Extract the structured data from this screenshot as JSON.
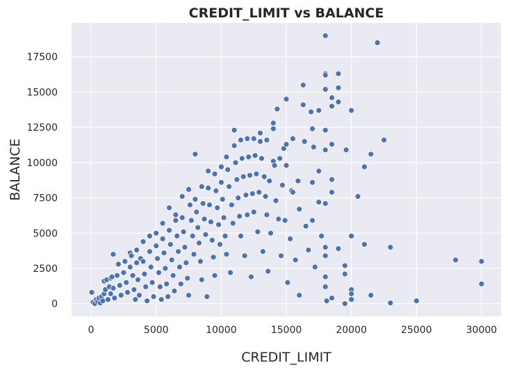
{
  "chart_data": {
    "type": "scatter",
    "title": "CREDIT_LIMIT vs BALANCE",
    "xlabel": "CREDIT_LIMIT",
    "ylabel": "BALANCE",
    "xlim": [
      -1500,
      31500
    ],
    "ylim": [
      -900,
      19900
    ],
    "xticks": [
      0,
      5000,
      10000,
      15000,
      20000,
      25000,
      30000
    ],
    "yticks": [
      0,
      2500,
      5000,
      7500,
      10000,
      12500,
      15000,
      17500
    ],
    "grid": true,
    "colors": {
      "background": "#eaeaf2",
      "grid": "#ffffff",
      "point": "#4c72b0",
      "point_edge": "#ffffff"
    },
    "series": [
      {
        "points": [
          [
            50,
            800
          ],
          [
            150,
            100
          ],
          [
            300,
            0
          ],
          [
            400,
            300
          ],
          [
            500,
            150
          ],
          [
            600,
            400
          ],
          [
            700,
            50
          ],
          [
            800,
            500
          ],
          [
            900,
            200
          ],
          [
            1000,
            700
          ],
          [
            1000,
            1600
          ],
          [
            1100,
            1000
          ],
          [
            1200,
            1700
          ],
          [
            1300,
            300
          ],
          [
            1400,
            1200
          ],
          [
            1500,
            1800
          ],
          [
            1500,
            700
          ],
          [
            1600,
            1900
          ],
          [
            1700,
            3500
          ],
          [
            1700,
            1100
          ],
          [
            1800,
            400
          ],
          [
            2000,
            2000
          ],
          [
            2100,
            2800
          ],
          [
            2200,
            1300
          ],
          [
            2300,
            600
          ],
          [
            2500,
            2200
          ],
          [
            2600,
            3000
          ],
          [
            2700,
            1500
          ],
          [
            2800,
            800
          ],
          [
            3000,
            2600
          ],
          [
            3000,
            3600
          ],
          [
            3100,
            3400
          ],
          [
            3200,
            2000
          ],
          [
            3300,
            1000
          ],
          [
            3400,
            300
          ],
          [
            3500,
            3800
          ],
          [
            3500,
            2900
          ],
          [
            3600,
            1700
          ],
          [
            3700,
            600
          ],
          [
            3800,
            3200
          ],
          [
            4000,
            4400
          ],
          [
            4000,
            3000
          ],
          [
            4100,
            2100
          ],
          [
            4200,
            1200
          ],
          [
            4300,
            200
          ],
          [
            4500,
            4800
          ],
          [
            4500,
            3700
          ],
          [
            4600,
            2600
          ],
          [
            4700,
            1500
          ],
          [
            4800,
            500
          ],
          [
            5000,
            5000
          ],
          [
            5000,
            4100
          ],
          [
            5100,
            3200
          ],
          [
            5200,
            2200
          ],
          [
            5300,
            1200
          ],
          [
            5400,
            300
          ],
          [
            5500,
            5700
          ],
          [
            5500,
            4600
          ],
          [
            5600,
            3600
          ],
          [
            5700,
            2500
          ],
          [
            5800,
            1400
          ],
          [
            5900,
            500
          ],
          [
            6000,
            6800
          ],
          [
            6000,
            5200
          ],
          [
            6100,
            4200
          ],
          [
            6200,
            3100
          ],
          [
            6300,
            2000
          ],
          [
            6400,
            900
          ],
          [
            6500,
            5900
          ],
          [
            6500,
            6300
          ],
          [
            6600,
            4800
          ],
          [
            6700,
            3700
          ],
          [
            6800,
            2600
          ],
          [
            6900,
            1400
          ],
          [
            7000,
            7600
          ],
          [
            7000,
            6100
          ],
          [
            7100,
            5100
          ],
          [
            7200,
            4000
          ],
          [
            7300,
            2900
          ],
          [
            7400,
            1800
          ],
          [
            7500,
            600
          ],
          [
            7500,
            8100
          ],
          [
            7600,
            7000
          ],
          [
            7700,
            5900
          ],
          [
            7800,
            4800
          ],
          [
            7900,
            3500
          ],
          [
            8000,
            10600
          ],
          [
            8000,
            7400
          ],
          [
            8100,
            6500
          ],
          [
            8200,
            5400
          ],
          [
            8300,
            4300
          ],
          [
            8400,
            3000
          ],
          [
            8500,
            8300
          ],
          [
            8500,
            1700
          ],
          [
            8600,
            7100
          ],
          [
            8700,
            6000
          ],
          [
            8800,
            4900
          ],
          [
            8900,
            500
          ],
          [
            9000,
            9400
          ],
          [
            9000,
            8200
          ],
          [
            9100,
            7000
          ],
          [
            9200,
            5800
          ],
          [
            9300,
            4500
          ],
          [
            9400,
            3300
          ],
          [
            9500,
            9200
          ],
          [
            9500,
            2000
          ],
          [
            9600,
            8000
          ],
          [
            9700,
            6800
          ],
          [
            9800,
            5600
          ],
          [
            9900,
            4200
          ],
          [
            10000,
            9700
          ],
          [
            10000,
            8600
          ],
          [
            10100,
            7400
          ],
          [
            10200,
            6100
          ],
          [
            10300,
            4800
          ],
          [
            10400,
            10400
          ],
          [
            10400,
            3500
          ],
          [
            10500,
            9500
          ],
          [
            10600,
            8300
          ],
          [
            10700,
            2200
          ],
          [
            10800,
            7000
          ],
          [
            10900,
            5700
          ],
          [
            11000,
            12300
          ],
          [
            11000,
            11200
          ],
          [
            11100,
            10000
          ],
          [
            11200,
            8800
          ],
          [
            11300,
            7500
          ],
          [
            11400,
            6200
          ],
          [
            11500,
            11600
          ],
          [
            11500,
            4800
          ],
          [
            11600,
            10300
          ],
          [
            11700,
            9000
          ],
          [
            11800,
            3400
          ],
          [
            11900,
            7700
          ],
          [
            12000,
            11700
          ],
          [
            12000,
            6300
          ],
          [
            12100,
            10400
          ],
          [
            12200,
            9100
          ],
          [
            12300,
            1900
          ],
          [
            12400,
            7800
          ],
          [
            12500,
            11700
          ],
          [
            12500,
            6500
          ],
          [
            12600,
            10500
          ],
          [
            12700,
            9200
          ],
          [
            12800,
            5100
          ],
          [
            12900,
            7900
          ],
          [
            13000,
            12100
          ],
          [
            13000,
            11500
          ],
          [
            13100,
            10300
          ],
          [
            13200,
            3700
          ],
          [
            13300,
            9000
          ],
          [
            13400,
            7600
          ],
          [
            13500,
            11600
          ],
          [
            13500,
            6300
          ],
          [
            13600,
            2300
          ],
          [
            13700,
            8700
          ],
          [
            13800,
            5000
          ],
          [
            14000,
            12800
          ],
          [
            14000,
            12400
          ],
          [
            14000,
            10100
          ],
          [
            14100,
            9800
          ],
          [
            14200,
            7300
          ],
          [
            14300,
            13800
          ],
          [
            14400,
            6000
          ],
          [
            14500,
            10300
          ],
          [
            14600,
            3400
          ],
          [
            14700,
            8400
          ],
          [
            14800,
            11000
          ],
          [
            14900,
            5900
          ],
          [
            15000,
            14500
          ],
          [
            15000,
            11300
          ],
          [
            15000,
            9800
          ],
          [
            15100,
            1500
          ],
          [
            15300,
            4600
          ],
          [
            15400,
            8000
          ],
          [
            15500,
            11700
          ],
          [
            15500,
            7900
          ],
          [
            15700,
            3100
          ],
          [
            15900,
            8700
          ],
          [
            16000,
            6700
          ],
          [
            16000,
            600
          ],
          [
            16300,
            15500
          ],
          [
            16300,
            14100
          ],
          [
            16400,
            11500
          ],
          [
            16500,
            5500
          ],
          [
            16700,
            3800
          ],
          [
            16900,
            13600
          ],
          [
            17000,
            12400
          ],
          [
            17000,
            8600
          ],
          [
            17000,
            5900
          ],
          [
            17100,
            11100
          ],
          [
            17200,
            2600
          ],
          [
            17500,
            13700
          ],
          [
            17500,
            9400
          ],
          [
            17500,
            7200
          ],
          [
            17700,
            4800
          ],
          [
            18000,
            19000
          ],
          [
            18000,
            16300
          ],
          [
            18000,
            16200
          ],
          [
            18000,
            15200
          ],
          [
            18000,
            12300
          ],
          [
            18000,
            10900
          ],
          [
            18000,
            7100
          ],
          [
            18000,
            4000
          ],
          [
            18000,
            3400
          ],
          [
            18000,
            1900
          ],
          [
            18000,
            1200
          ],
          [
            18100,
            200
          ],
          [
            18500,
            14600
          ],
          [
            18500,
            14000
          ],
          [
            18500,
            11300
          ],
          [
            18500,
            8800
          ],
          [
            18500,
            7900
          ],
          [
            18500,
            400
          ],
          [
            19000,
            16300
          ],
          [
            19000,
            15300
          ],
          [
            19000,
            14300
          ],
          [
            19000,
            3900
          ],
          [
            19500,
            2700
          ],
          [
            19500,
            2100
          ],
          [
            19500,
            0
          ],
          [
            19600,
            10900
          ],
          [
            20000,
            13700
          ],
          [
            20000,
            4800
          ],
          [
            20000,
            1000
          ],
          [
            20000,
            700
          ],
          [
            20000,
            300
          ],
          [
            20500,
            7600
          ],
          [
            21000,
            9700
          ],
          [
            21000,
            4200
          ],
          [
            21500,
            10600
          ],
          [
            21500,
            600
          ],
          [
            22000,
            18500
          ],
          [
            22500,
            11600
          ],
          [
            23000,
            4000
          ],
          [
            23000,
            50
          ],
          [
            25000,
            200
          ],
          [
            28000,
            3100
          ],
          [
            30000,
            3000
          ],
          [
            30000,
            1400
          ]
        ]
      }
    ]
  }
}
